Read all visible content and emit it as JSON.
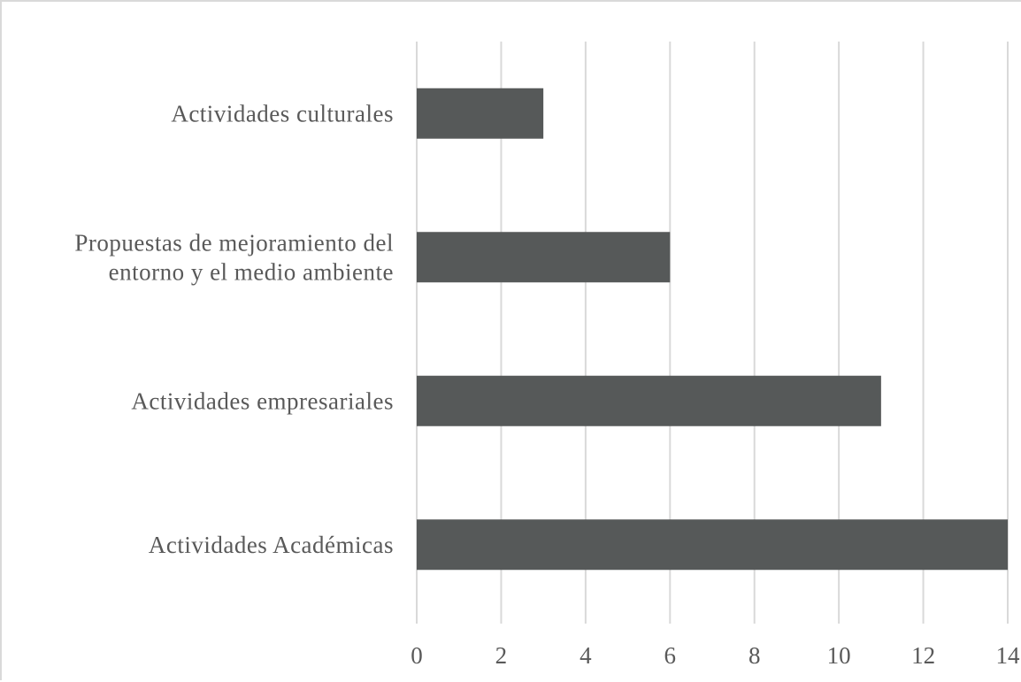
{
  "chart_data": {
    "type": "bar",
    "orientation": "horizontal",
    "title": "",
    "xlabel": "",
    "ylabel": "",
    "categories": [
      [
        "Actividades Académicas"
      ],
      [
        "Actividades empresariales"
      ],
      [
        "Propuestas de mejoramiento del",
        "entorno y el medio ambiente"
      ],
      [
        "Actividades culturales"
      ]
    ],
    "values": [
      14,
      11,
      6,
      3
    ],
    "xlim": [
      0,
      14
    ],
    "xticks": [
      "0",
      "2",
      "4",
      "6",
      "8",
      "10",
      "12",
      "14"
    ],
    "grid": "vertical",
    "legend": "none",
    "bar_color": "#565959",
    "grid_color": "#d9d9d9"
  }
}
